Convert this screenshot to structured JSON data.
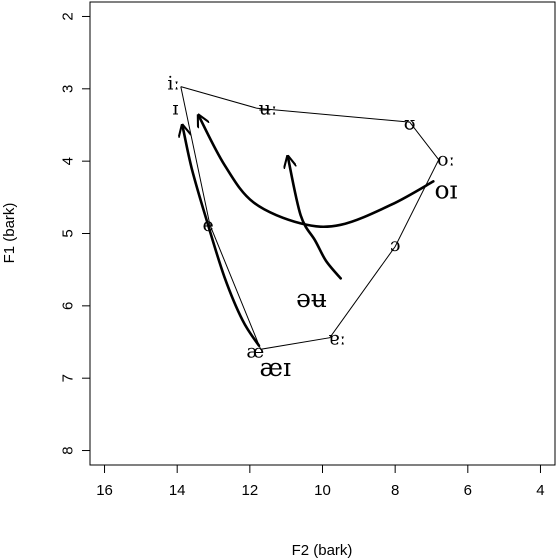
{
  "chart_data": {
    "type": "scatter",
    "title": "",
    "xlabel": "F2 (bark)",
    "ylabel": "F1 (bark)",
    "x_axis_reversed": true,
    "y_axis_reversed": true,
    "xlim": [
      16.4,
      3.6
    ],
    "ylim": [
      1.8,
      8.2
    ],
    "xticks": [
      16,
      14,
      12,
      10,
      8,
      6,
      4
    ],
    "yticks": [
      2,
      3,
      4,
      5,
      6,
      7,
      8
    ],
    "grid": false,
    "legend": "none",
    "vowel_polygon": [
      {
        "x": 13.9,
        "y": 2.97
      },
      {
        "x": 11.8,
        "y": 3.27
      },
      {
        "x": 7.6,
        "y": 3.46
      },
      {
        "x": 6.8,
        "y": 3.98
      },
      {
        "x": 8.0,
        "y": 5.18
      },
      {
        "x": 9.8,
        "y": 6.44
      },
      {
        "x": 11.7,
        "y": 6.6
      },
      {
        "x": 13.1,
        "y": 4.88
      },
      {
        "x": 13.9,
        "y": 2.97
      }
    ],
    "vowels": [
      {
        "label": "iː",
        "x": 14.1,
        "y": 2.93
      },
      {
        "label": "ɪ",
        "x": 14.05,
        "y": 3.27
      },
      {
        "label": "ʉː",
        "x": 11.5,
        "y": 3.27
      },
      {
        "label": "ʊ",
        "x": 7.6,
        "y": 3.48
      },
      {
        "label": "oː",
        "x": 6.6,
        "y": 3.98
      },
      {
        "label": "ɔ",
        "x": 8.0,
        "y": 5.16
      },
      {
        "label": "ɐː",
        "x": 9.6,
        "y": 6.45
      },
      {
        "label": "æ",
        "x": 11.85,
        "y": 6.63
      },
      {
        "label": "e",
        "x": 13.15,
        "y": 4.88
      }
    ],
    "diphthongs": [
      {
        "label": "oɪ",
        "label_x": 6.6,
        "label_y": 4.4,
        "path": [
          {
            "x": 6.95,
            "y": 4.28
          },
          {
            "x": 8.1,
            "y": 4.6
          },
          {
            "x": 9.5,
            "y": 4.88
          },
          {
            "x": 10.6,
            "y": 4.86
          },
          {
            "x": 11.9,
            "y": 4.57
          },
          {
            "x": 12.7,
            "y": 4.05
          },
          {
            "x": 13.4,
            "y": 3.38
          }
        ]
      },
      {
        "label": "əʉ",
        "label_x": 10.3,
        "label_y": 5.9,
        "path": [
          {
            "x": 9.5,
            "y": 5.62
          },
          {
            "x": 9.9,
            "y": 5.38
          },
          {
            "x": 10.2,
            "y": 5.1
          },
          {
            "x": 10.6,
            "y": 4.75
          },
          {
            "x": 10.95,
            "y": 3.95
          }
        ]
      },
      {
        "label": "æɪ",
        "label_x": 11.3,
        "label_y": 6.85,
        "path": [
          {
            "x": 11.75,
            "y": 6.55
          },
          {
            "x": 12.2,
            "y": 6.2
          },
          {
            "x": 12.7,
            "y": 5.6
          },
          {
            "x": 13.2,
            "y": 4.8
          },
          {
            "x": 13.6,
            "y": 4.1
          },
          {
            "x": 13.85,
            "y": 3.52
          }
        ]
      }
    ]
  }
}
